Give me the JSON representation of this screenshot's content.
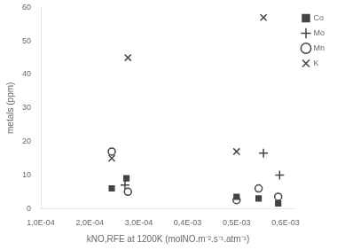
{
  "chart_data": {
    "type": "scatter",
    "xlabel": "kNO,RFE at 1200K (molNO.m⁻².s⁻¹.atm⁻¹)",
    "ylabel": "metals (ppm)",
    "xlim": [
      0.0001,
      0.00062
    ],
    "ylim": [
      0,
      60
    ],
    "xticks": [
      {
        "value": 0.0001,
        "label": "1,0E-04"
      },
      {
        "value": 0.0002,
        "label": "2,0E-04"
      },
      {
        "value": 0.0003,
        "label": "3,0E-04"
      },
      {
        "value": 0.0004,
        "label": "0,4E-03"
      },
      {
        "value": 0.0005,
        "label": "0,5E-03"
      },
      {
        "value": 0.0006,
        "label": "0,6E-03"
      }
    ],
    "yticks": [
      0,
      10,
      20,
      30,
      40,
      50,
      60
    ],
    "grid": false,
    "legend": "right",
    "series": [
      {
        "name": "Co",
        "color": "#444444",
        "marker": "square",
        "x": [
          0.000245,
          0.000275,
          0.0005,
          0.000545,
          0.000585
        ],
        "values": [
          6,
          9,
          3.5,
          3,
          1.5
        ]
      },
      {
        "name": "Mo",
        "color": "#444444",
        "marker": "plus",
        "x": [
          0.000272,
          0.000555,
          0.000588
        ],
        "values": [
          7,
          16.5,
          10
        ]
      },
      {
        "name": "Mn",
        "color": "#444444",
        "marker": "circle",
        "x": [
          0.000245,
          0.000278,
          0.0005,
          0.000545,
          0.000585
        ],
        "values": [
          17,
          5,
          2.5,
          6,
          3.5
        ]
      },
      {
        "name": "K",
        "color": "#444444",
        "marker": "cross",
        "x": [
          0.000245,
          0.000278,
          0.0005,
          0.000555
        ],
        "values": [
          15,
          45,
          17,
          57
        ]
      }
    ]
  }
}
